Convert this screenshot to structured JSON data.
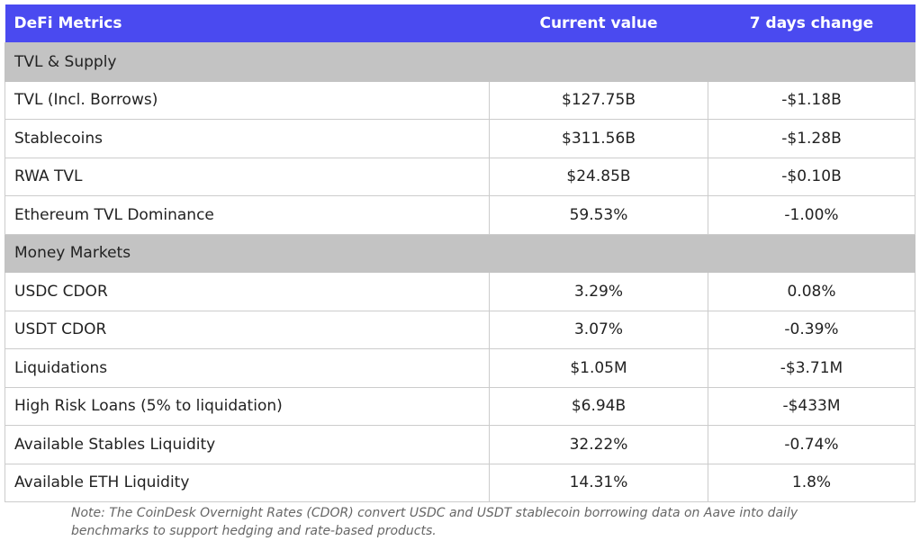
{
  "table": {
    "header": [
      "DeFi Metrics",
      "Current value",
      "7 days change"
    ],
    "sections": [
      {
        "title": "TVL & Supply",
        "rows": [
          [
            "TVL (Incl. Borrows)",
            "$127.75B",
            "-$1.18B"
          ],
          [
            "Stablecoins",
            "$311.56B",
            "-$1.28B"
          ],
          [
            "RWA TVL",
            "$24.85B",
            "-$0.10B"
          ],
          [
            "Ethereum TVL Dominance",
            "59.53%",
            "-1.00%"
          ]
        ]
      },
      {
        "title": "Money Markets",
        "rows": [
          [
            "USDC CDOR",
            "3.29%",
            "0.08%"
          ],
          [
            "USDT CDOR",
            "3.07%",
            "-0.39%"
          ],
          [
            "Liquidations",
            "$1.05M",
            "-$3.71M"
          ],
          [
            "High Risk Loans (5% to liquidation)",
            "$6.94B",
            "-$433M"
          ],
          [
            "Available Stables Liquidity",
            "32.22%",
            "-0.74%"
          ],
          [
            "Available ETH Liquidity",
            "14.31%",
            "1.8%"
          ]
        ]
      }
    ]
  },
  "note": "Note: The CoinDesk Overnight Rates (CDOR) convert USDC and USDT stablecoin borrowing data on Aave into daily benchmarks to support hedging and rate-based products."
}
